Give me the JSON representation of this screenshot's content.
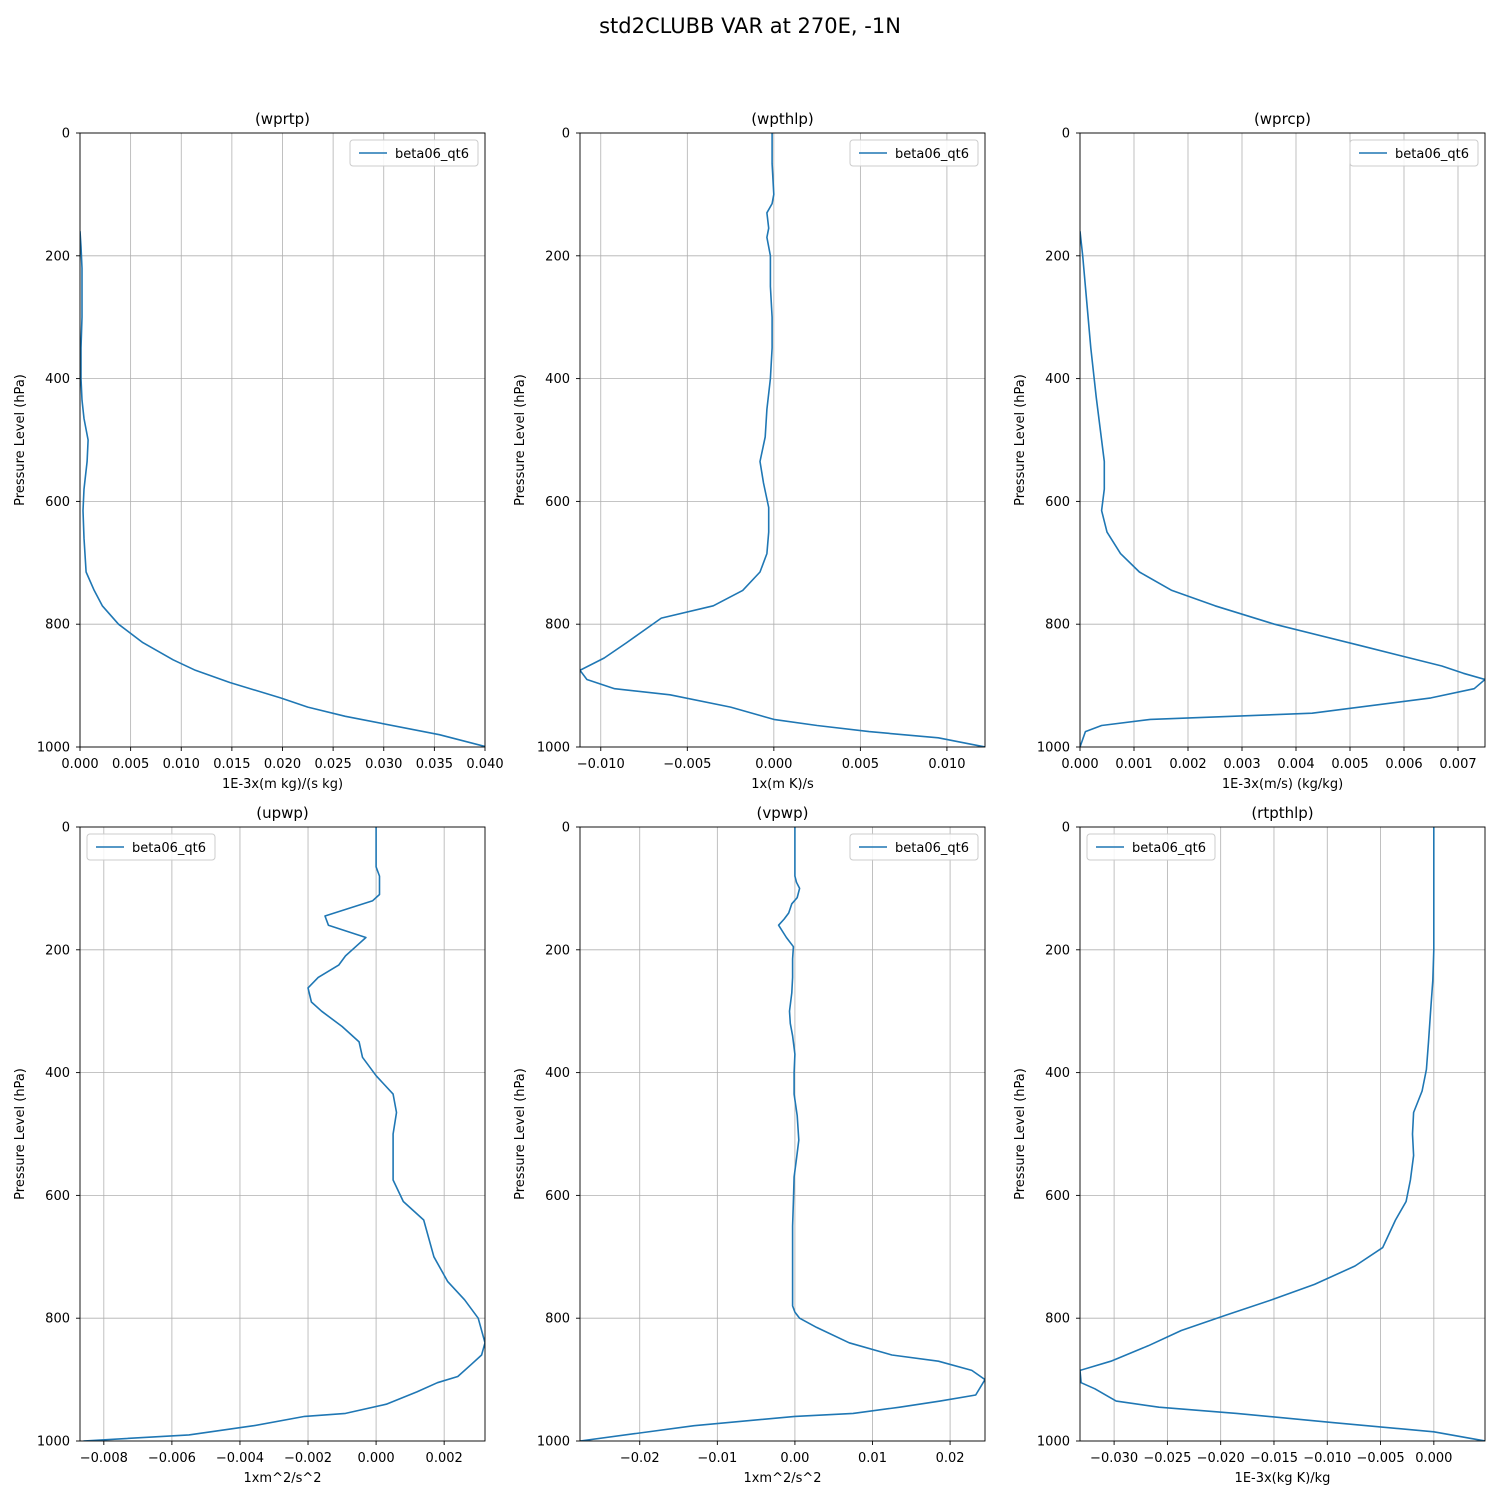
{
  "figure": {
    "title": "std2CLUBB VAR at 270E, -1N"
  },
  "chart_data": [
    {
      "type": "line",
      "title": "(wprtp)",
      "xlabel": "1E-3x(m kg)/(s kg)",
      "ylabel": "Pressure Level (hPa)",
      "xlim": [
        0.0,
        0.04
      ],
      "ylim": [
        1000,
        0
      ],
      "xticks": [
        0.0,
        0.005,
        0.01,
        0.015,
        0.02,
        0.025,
        0.03,
        0.035,
        0.04
      ],
      "xtick_labels": [
        "0.000",
        "0.005",
        "0.010",
        "0.015",
        "0.020",
        "0.025",
        "0.030",
        "0.035",
        "0.040"
      ],
      "yticks": [
        0,
        200,
        400,
        600,
        800,
        1000
      ],
      "ytick_labels": [
        "0",
        "200",
        "400",
        "600",
        "800",
        "1000"
      ],
      "grid": true,
      "legend": "top-right",
      "series": [
        {
          "name": "beta06_qt6",
          "color": "#1f77b4",
          "x": [
            0,
            0.0001,
            0.0002,
            0.0002,
            0.0001,
            0.0001,
            0.0002,
            0.0004,
            0.0008,
            0.0007,
            0.0004,
            0.0003,
            0.0004,
            0.0006,
            0.0014,
            0.0022,
            0.0038,
            0.0062,
            0.0092,
            0.0114,
            0.0148,
            0.0198,
            0.0225,
            0.0262,
            0.0355,
            0.0402
          ],
          "y": [
            160,
            185,
            220,
            300,
            350,
            400,
            435,
            465,
            500,
            535,
            580,
            615,
            660,
            715,
            745,
            770,
            800,
            830,
            858,
            875,
            895,
            920,
            935,
            950,
            980,
            1000
          ]
        }
      ]
    },
    {
      "type": "line",
      "title": "(wpthlp)",
      "xlabel": "1x(m K)/s",
      "ylabel": "Pressure Level (hPa)",
      "xlim": [
        -0.0112,
        0.0122
      ],
      "ylim": [
        1000,
        0
      ],
      "xticks": [
        -0.01,
        -0.005,
        0.0,
        0.005,
        0.01
      ],
      "xtick_labels": [
        "−0.010",
        "−0.005",
        "0.000",
        "0.005",
        "0.010"
      ],
      "yticks": [
        0,
        200,
        400,
        600,
        800,
        1000
      ],
      "ytick_labels": [
        "0",
        "200",
        "400",
        "600",
        "800",
        "1000"
      ],
      "grid": true,
      "legend": "top-right",
      "series": [
        {
          "name": "beta06_qt6",
          "color": "#1f77b4",
          "x": [
            -0.0001,
            -0.0001,
            0.0,
            -0.0001,
            -0.0004,
            -0.0003,
            -0.0004,
            -0.0002,
            -0.0002,
            -0.0001,
            -0.0001,
            -0.0002,
            -0.0004,
            -0.0005,
            -0.0008,
            -0.0006,
            -0.0003,
            -0.0003,
            -0.0004,
            -0.0008,
            -0.0018,
            -0.0035,
            -0.0065,
            -0.0085,
            -0.0098,
            -0.0112,
            -0.0108,
            -0.0092,
            -0.006,
            -0.0025,
            0.0,
            0.0025,
            0.0055,
            0.0095,
            0.0122
          ],
          "y": [
            0,
            50,
            100,
            115,
            130,
            155,
            170,
            200,
            250,
            300,
            350,
            400,
            450,
            495,
            535,
            570,
            610,
            650,
            685,
            715,
            745,
            770,
            790,
            830,
            855,
            875,
            890,
            905,
            915,
            935,
            955,
            965,
            975,
            985,
            1000
          ]
        }
      ]
    },
    {
      "type": "line",
      "title": "(wprcp)",
      "xlabel": "1E-3x(m/s) (kg/kg)",
      "ylabel": "Pressure Level (hPa)",
      "xlim": [
        0.0,
        0.0075
      ],
      "ylim": [
        1000,
        0
      ],
      "xticks": [
        0.0,
        0.001,
        0.002,
        0.003,
        0.004,
        0.005,
        0.006,
        0.007
      ],
      "xtick_labels": [
        "0.000",
        "0.001",
        "0.002",
        "0.003",
        "0.004",
        "0.005",
        "0.006",
        "0.007"
      ],
      "yticks": [
        0,
        200,
        400,
        600,
        800,
        1000
      ],
      "ytick_labels": [
        "0",
        "200",
        "400",
        "600",
        "800",
        "1000"
      ],
      "grid": true,
      "legend": "top-right",
      "series": [
        {
          "name": "beta06_qt6",
          "color": "#1f77b4",
          "x": [
            0.0,
            5e-05,
            0.0001,
            0.0002,
            0.0003,
            0.0004,
            0.00045,
            0.00045,
            0.0004,
            0.0005,
            0.00075,
            0.0011,
            0.0017,
            0.0025,
            0.0036,
            0.0052,
            0.0067,
            0.0071,
            0.0075,
            0.0073,
            0.0065,
            0.0043,
            0.0013,
            0.0004,
            0.0001,
            0.0
          ],
          "y": [
            160,
            200,
            250,
            350,
            430,
            500,
            535,
            580,
            615,
            650,
            685,
            715,
            745,
            770,
            800,
            835,
            868,
            880,
            890,
            905,
            920,
            945,
            955,
            965,
            975,
            1000
          ]
        }
      ]
    },
    {
      "type": "line",
      "title": "(upwp)",
      "xlabel": "1xm^2/s^2",
      "ylabel": "Pressure Level (hPa)",
      "xlim": [
        -0.0087,
        0.0032
      ],
      "ylim": [
        1000,
        0
      ],
      "xticks": [
        -0.008,
        -0.006,
        -0.004,
        -0.002,
        0.0,
        0.002
      ],
      "xtick_labels": [
        "−0.008",
        "−0.006",
        "−0.004",
        "−0.002",
        "0.000",
        "0.002"
      ],
      "yticks": [
        0,
        200,
        400,
        600,
        800,
        1000
      ],
      "ytick_labels": [
        "0",
        "200",
        "400",
        "600",
        "800",
        "1000"
      ],
      "grid": true,
      "legend": "top-left",
      "series": [
        {
          "name": "beta06_qt6",
          "color": "#1f77b4",
          "x": [
            0.0,
            0.0,
            0.0001,
            0.0001,
            -0.0001,
            -0.0015,
            -0.0014,
            -0.0003,
            -0.0006,
            -0.0009,
            -0.0011,
            -0.0017,
            -0.002,
            -0.0019,
            -0.0016,
            -0.001,
            -0.0005,
            -0.0004,
            0.0,
            0.0005,
            0.0006,
            0.0005,
            0.0005,
            0.0008,
            0.0014,
            0.0017,
            0.0021,
            0.0026,
            0.003,
            0.0032,
            0.0031,
            0.0028,
            0.0024,
            0.0018,
            0.0012,
            0.0003,
            -0.0009,
            -0.0021,
            -0.0036,
            -0.0055,
            -0.0086
          ],
          "y": [
            0,
            65,
            80,
            110,
            120,
            145,
            160,
            180,
            195,
            210,
            225,
            245,
            262,
            285,
            300,
            325,
            350,
            375,
            405,
            435,
            465,
            500,
            575,
            610,
            640,
            700,
            740,
            770,
            800,
            840,
            860,
            875,
            895,
            905,
            920,
            940,
            955,
            960,
            975,
            990,
            1000
          ]
        }
      ]
    },
    {
      "type": "line",
      "title": "(vpwp)",
      "xlabel": "1xm^2/s^2",
      "ylabel": "Pressure Level (hPa)",
      "xlim": [
        -0.0277,
        0.0245
      ],
      "ylim": [
        1000,
        0
      ],
      "xticks": [
        -0.02,
        -0.01,
        0.0,
        0.01,
        0.02
      ],
      "xtick_labels": [
        "−0.02",
        "−0.01",
        "0.00",
        "0.01",
        "0.02"
      ],
      "yticks": [
        0,
        200,
        400,
        600,
        800,
        1000
      ],
      "ytick_labels": [
        "0",
        "200",
        "400",
        "600",
        "800",
        "1000"
      ],
      "grid": true,
      "legend": "top-right",
      "series": [
        {
          "name": "beta06_qt6",
          "color": "#1f77b4",
          "x": [
            0.0,
            0.0,
            0.0002,
            0.0006,
            0.0003,
            -0.0004,
            -0.0008,
            -0.0014,
            -0.0021,
            -0.0011,
            -0.0002,
            -0.0003,
            -0.0003,
            -0.0004,
            -0.0007,
            -0.0006,
            -0.0003,
            0.0,
            -0.0001,
            -0.0001,
            0.0003,
            0.0005,
            0.0002,
            -0.0001,
            -0.0002,
            -0.0003,
            -0.0003,
            -0.0003,
            -0.0003,
            -0.0003,
            0.0,
            0.0006,
            0.0028,
            0.007,
            0.0125,
            0.0185,
            0.0228,
            0.0245,
            0.0233,
            0.0187,
            0.0135,
            0.0075,
            0.0,
            -0.013,
            -0.0277
          ],
          "y": [
            0,
            80,
            90,
            100,
            115,
            125,
            140,
            150,
            160,
            180,
            195,
            215,
            245,
            270,
            300,
            320,
            340,
            370,
            400,
            435,
            470,
            510,
            540,
            570,
            610,
            650,
            700,
            740,
            770,
            780,
            790,
            800,
            815,
            840,
            860,
            870,
            885,
            900,
            925,
            935,
            945,
            955,
            960,
            975,
            1000
          ]
        }
      ]
    },
    {
      "type": "line",
      "title": "(rtpthlp)",
      "xlabel": "1E-3x(kg K)/kg",
      "ylabel": "Pressure Level (hPa)",
      "xlim": [
        -0.0332,
        0.0048
      ],
      "ylim": [
        1000,
        0
      ],
      "xticks": [
        -0.03,
        -0.025,
        -0.02,
        -0.015,
        -0.01,
        -0.005,
        0.0
      ],
      "xtick_labels": [
        "−0.030",
        "−0.025",
        "−0.020",
        "−0.015",
        "−0.010",
        "−0.005",
        "0.000"
      ],
      "yticks": [
        0,
        200,
        400,
        600,
        800,
        1000
      ],
      "ytick_labels": [
        "0",
        "200",
        "400",
        "600",
        "800",
        "1000"
      ],
      "grid": true,
      "legend": "top-left",
      "series": [
        {
          "name": "beta06_qt6",
          "color": "#1f77b4",
          "x": [
            0.0,
            0.0,
            -0.0001,
            -0.0003,
            -0.0005,
            -0.0007,
            -0.0011,
            -0.0019,
            -0.002,
            -0.0019,
            -0.0022,
            -0.0026,
            -0.0036,
            -0.0048,
            -0.0074,
            -0.0112,
            -0.0152,
            -0.0195,
            -0.0237,
            -0.0268,
            -0.0303,
            -0.0332,
            -0.0331,
            -0.0318,
            -0.0298,
            -0.0258,
            -0.0185,
            -0.0095,
            0.0,
            0.0048
          ],
          "y": [
            0,
            200,
            250,
            300,
            350,
            395,
            430,
            465,
            500,
            535,
            575,
            610,
            640,
            685,
            715,
            745,
            770,
            795,
            820,
            845,
            870,
            885,
            905,
            915,
            935,
            945,
            955,
            970,
            985,
            1000
          ]
        }
      ]
    }
  ]
}
